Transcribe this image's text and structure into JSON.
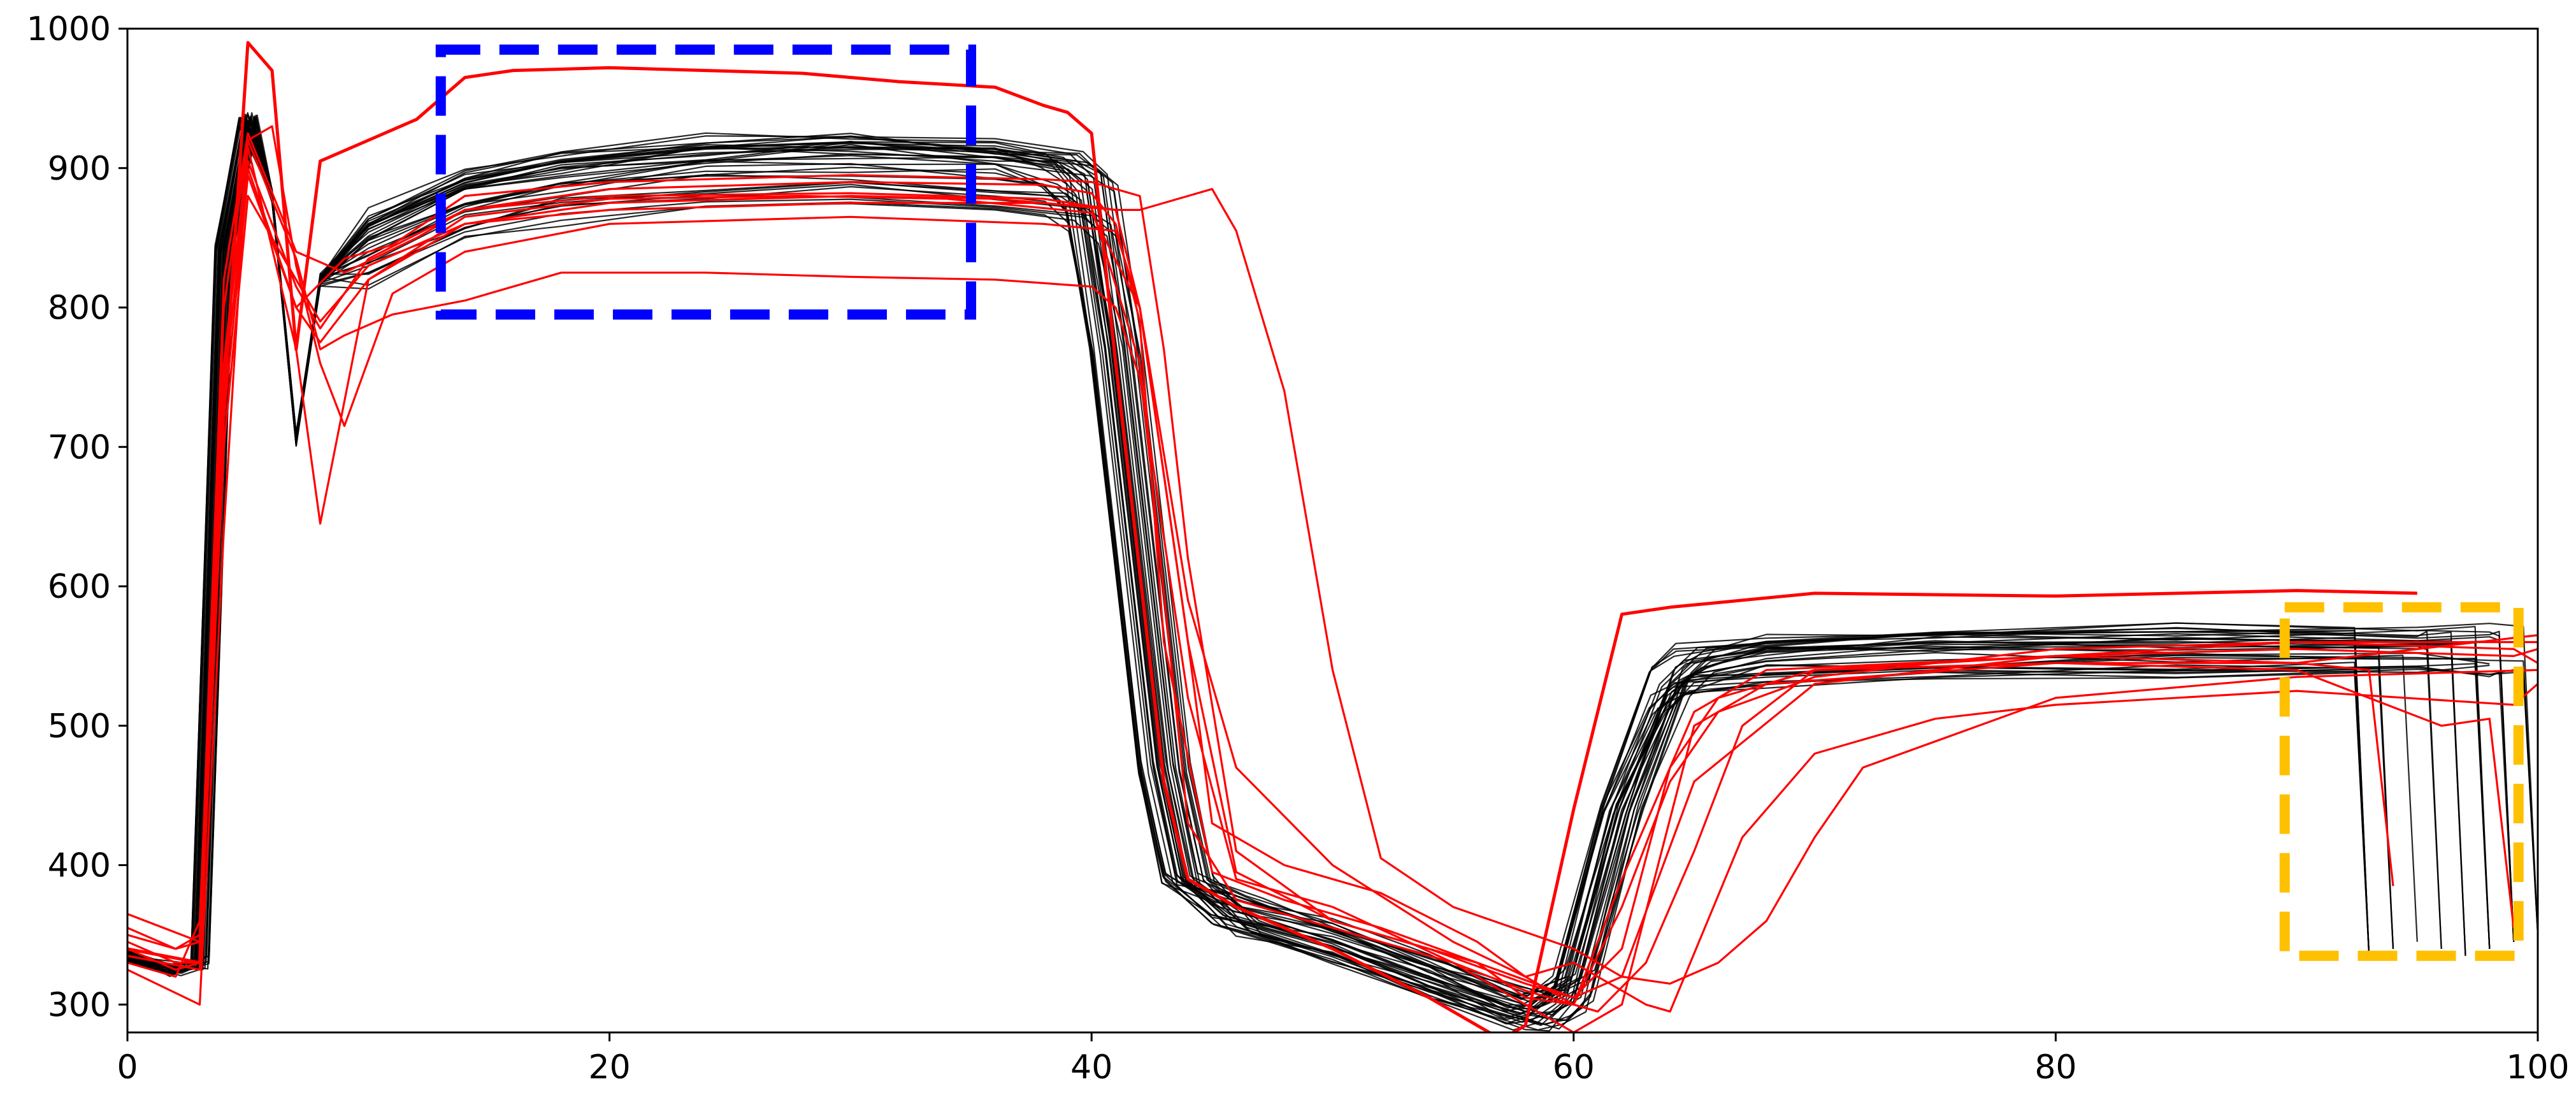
{
  "chart_data": {
    "type": "line",
    "title": "",
    "xlabel": "",
    "ylabel": "",
    "xlim": [
      0,
      100
    ],
    "ylim": [
      280,
      1000
    ],
    "x_ticks": [
      0,
      20,
      40,
      60,
      80,
      100
    ],
    "y_ticks": [
      300,
      400,
      500,
      600,
      700,
      800,
      900,
      1000
    ],
    "x_tick_labels": [
      "0",
      "20",
      "40",
      "60",
      "80",
      "100"
    ],
    "y_tick_labels": [
      "300",
      "400",
      "500",
      "600",
      "700",
      "800",
      "900",
      "1000"
    ],
    "grid": false,
    "legend": "none",
    "colors": {
      "normal": "#000000",
      "anomalous": "#ff0000",
      "plateau_box": "#0000ff",
      "tail_box": "#ffc000"
    },
    "normal_profile": {
      "description": "34 black cycles",
      "x": [
        0,
        2,
        3,
        4,
        5,
        6,
        7,
        8,
        10,
        14,
        18,
        24,
        30,
        36,
        39,
        40,
        41,
        43,
        44,
        46,
        50,
        54,
        58,
        59,
        60,
        62,
        64,
        65,
        68,
        75,
        85,
        95,
        98
      ],
      "y": [
        335,
        325,
        330,
        840,
        935,
        880,
        705,
        820,
        840,
        870,
        885,
        895,
        898,
        892,
        885,
        870,
        770,
        470,
        390,
        365,
        345,
        320,
        295,
        298,
        310,
        440,
        525,
        540,
        548,
        553,
        555,
        555,
        555
      ],
      "curve_count": 34,
      "end_drop_x": [
        93,
        94,
        95,
        96,
        97,
        98,
        99,
        100
      ],
      "end_drop_y": [
        335,
        340,
        345,
        340,
        335,
        340,
        345,
        350
      ]
    },
    "anomalous_series": [
      {
        "x": [
          0,
          3,
          4,
          5,
          6,
          7,
          8,
          10,
          12,
          14,
          16,
          20,
          24,
          28,
          32,
          36,
          38,
          39,
          40,
          41,
          43,
          44,
          46,
          50,
          54,
          57,
          58,
          60,
          62,
          64,
          70,
          80,
          90,
          95
        ],
        "y": [
          340,
          330,
          730,
          990,
          970,
          770,
          905,
          920,
          935,
          965,
          970,
          972,
          970,
          968,
          962,
          958,
          945,
          940,
          925,
          760,
          460,
          390,
          370,
          340,
          305,
          275,
          285,
          440,
          580,
          585,
          595,
          593,
          597,
          595
        ]
      },
      {
        "x": [
          0,
          3,
          4,
          5,
          7,
          8,
          9,
          11,
          14,
          18,
          24,
          30,
          36,
          40,
          41,
          42,
          44,
          46,
          50,
          55,
          58,
          60,
          62,
          65,
          68,
          80,
          90,
          100
        ],
        "y": [
          365,
          345,
          800,
          920,
          835,
          770,
          780,
          795,
          805,
          825,
          825,
          822,
          820,
          815,
          800,
          750,
          520,
          390,
          370,
          330,
          300,
          280,
          300,
          500,
          530,
          545,
          545,
          565
        ]
      },
      {
        "x": [
          0,
          2,
          3,
          4,
          5,
          7,
          8,
          10,
          14,
          20,
          28,
          34,
          40,
          42,
          44,
          45,
          48,
          52,
          56,
          58,
          60,
          61,
          63,
          65,
          67,
          70,
          80,
          90,
          99,
          100
        ],
        "y": [
          330,
          320,
          360,
          760,
          915,
          770,
          645,
          820,
          865,
          878,
          880,
          878,
          868,
          800,
          560,
          430,
          400,
          380,
          345,
          320,
          300,
          295,
          330,
          410,
          500,
          540,
          550,
          560,
          555,
          545
        ]
      },
      {
        "x": [
          0,
          3,
          4,
          5,
          6,
          7,
          8,
          9,
          11,
          14,
          20,
          30,
          38,
          41,
          42,
          44,
          46,
          50,
          55,
          58,
          60,
          62,
          63,
          64,
          67,
          70,
          75,
          80,
          90,
          99,
          100
        ],
        "y": [
          325,
          300,
          640,
          920,
          930,
          830,
          760,
          715,
          810,
          840,
          860,
          865,
          860,
          855,
          800,
          590,
          470,
          400,
          345,
          320,
          330,
          310,
          300,
          295,
          420,
          480,
          505,
          515,
          525,
          515,
          530
        ]
      },
      {
        "x": [
          0,
          2,
          3,
          4,
          5,
          7,
          9,
          11,
          14,
          20,
          30,
          38,
          40,
          41,
          42,
          43,
          44,
          46,
          48,
          50,
          52,
          56,
          60,
          62,
          65,
          70,
          80,
          90,
          99,
          100
        ],
        "y": [
          345,
          330,
          330,
          740,
          900,
          800,
          835,
          845,
          880,
          890,
          895,
          892,
          890,
          885,
          880,
          770,
          620,
          410,
          385,
          360,
          350,
          330,
          305,
          320,
          460,
          530,
          550,
          555,
          550,
          555
        ]
      },
      {
        "x": [
          0,
          2,
          3,
          4,
          5,
          7,
          8,
          10,
          14,
          20,
          30,
          38,
          41,
          42,
          44,
          46,
          50,
          54,
          58,
          60,
          62,
          64,
          66,
          70,
          80,
          90,
          96,
          98,
          99
        ],
        "y": [
          355,
          340,
          345,
          760,
          905,
          815,
          785,
          835,
          870,
          880,
          882,
          878,
          870,
          800,
          560,
          395,
          360,
          340,
          315,
          305,
          340,
          470,
          520,
          540,
          545,
          540,
          500,
          505,
          355
        ]
      },
      {
        "x": [
          0,
          2,
          3,
          4,
          5,
          7,
          8,
          10,
          14,
          20,
          30,
          36,
          40,
          42,
          44,
          46,
          48,
          50,
          52,
          55,
          58,
          60,
          62,
          64,
          65,
          68,
          80,
          90,
          93,
          94
        ],
        "y": [
          340,
          325,
          330,
          700,
          880,
          820,
          790,
          830,
          860,
          875,
          880,
          878,
          872,
          760,
          430,
          375,
          365,
          355,
          345,
          330,
          310,
          300,
          390,
          470,
          510,
          540,
          550,
          545,
          540,
          385
        ]
      },
      {
        "x": [
          0,
          2,
          3,
          4,
          5,
          7,
          9,
          12,
          14,
          20,
          30,
          38,
          40,
          41,
          42,
          43,
          45,
          48,
          52,
          56,
          58,
          60,
          62,
          64,
          66,
          70,
          80,
          90,
          100
        ],
        "y": [
          350,
          340,
          350,
          820,
          925,
          840,
          825,
          850,
          870,
          885,
          890,
          888,
          882,
          860,
          790,
          560,
          395,
          375,
          355,
          330,
          305,
          300,
          370,
          460,
          510,
          535,
          555,
          560,
          560
        ]
      },
      {
        "x": [
          0,
          3,
          4,
          5,
          7,
          8,
          10,
          14,
          20,
          30,
          36,
          38,
          41,
          42,
          44,
          45,
          46,
          48,
          50,
          52,
          55,
          60,
          62,
          64,
          66,
          68,
          70,
          72,
          80,
          90,
          100
        ],
        "y": [
          335,
          325,
          720,
          895,
          800,
          775,
          820,
          860,
          870,
          875,
          875,
          875,
          870,
          870,
          880,
          885,
          855,
          740,
          540,
          405,
          370,
          340,
          320,
          315,
          330,
          360,
          420,
          470,
          520,
          535,
          540
        ]
      }
    ],
    "annotations": [
      {
        "type": "dashed-box",
        "color": "#0000ff",
        "x_range": [
          13,
          35
        ],
        "y_range": [
          795,
          985
        ]
      },
      {
        "type": "dashed-box",
        "color": "#ffc000",
        "x_range": [
          89.5,
          99.2
        ],
        "y_range": [
          335,
          585
        ]
      }
    ]
  }
}
